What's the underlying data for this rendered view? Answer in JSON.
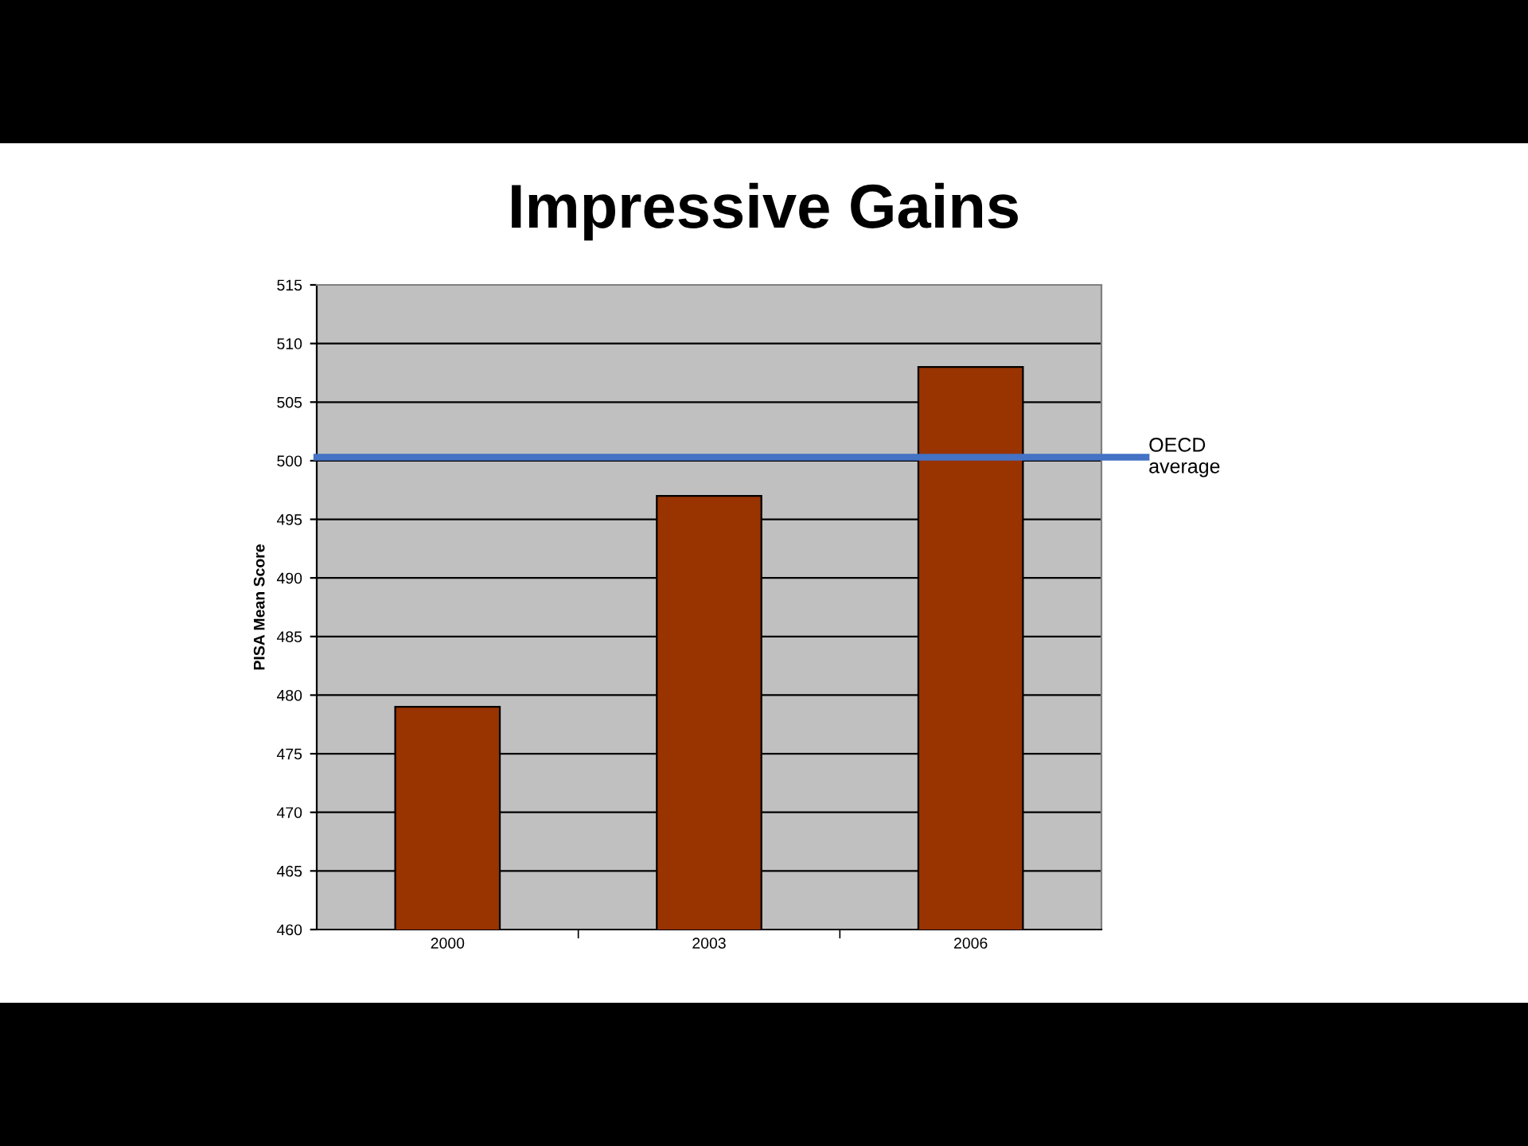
{
  "chart_data": {
    "type": "bar",
    "title": "Impressive Gains",
    "ylabel": "PISA Mean Score",
    "categories": [
      "2000",
      "2003",
      "2006"
    ],
    "values": [
      479,
      497,
      508
    ],
    "color": "#993300",
    "ylim": [
      460,
      515
    ],
    "yticks": [
      460,
      465,
      470,
      475,
      480,
      485,
      490,
      495,
      500,
      505,
      510,
      515
    ],
    "grid": "y",
    "ref_lines": [
      {
        "axis": "y",
        "value": 500.3,
        "label": "OECD\naverage",
        "color": "#4472c4"
      }
    ]
  }
}
